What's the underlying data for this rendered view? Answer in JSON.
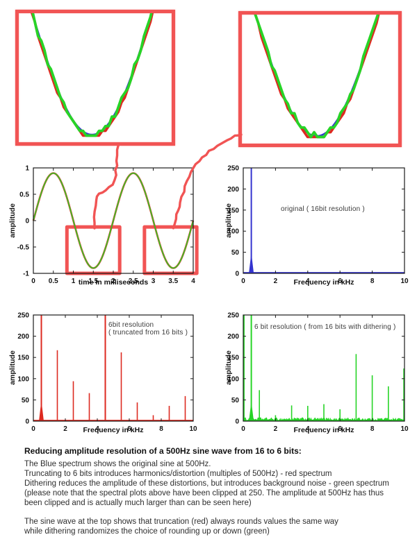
{
  "colors": {
    "zoom_red": "#f15454",
    "signal_green": "#27d427",
    "signal_red": "#dd2a20",
    "signal_blue": "#3434cf",
    "frame": "#1a1a1a",
    "tick_text": "#111111",
    "annotation_text": "#3a3a3a"
  },
  "signal": {
    "frequency_hz": 500,
    "amplitude": 0.9,
    "bits_original": 16,
    "bits_reduced": 6
  },
  "insets": {
    "left": {
      "t_range": [
        0.93,
        2.12
      ],
      "v_range": [
        -0.1,
        -0.95
      ],
      "seed": 11
    },
    "right": {
      "t_range": [
        2.93,
        4.12
      ],
      "v_range": [
        -0.1,
        -0.95
      ],
      "seed": 5
    }
  },
  "chart_data": [
    {
      "type": "line",
      "id": "time",
      "xlabel": "time in milliseconds",
      "ylabel": "amplitude",
      "xlim": [
        0,
        4
      ],
      "ylim": [
        -1,
        1
      ],
      "xticks": [
        0,
        0.5,
        1,
        1.5,
        2,
        2.5,
        3,
        3.5,
        4
      ],
      "xtick_labels": [
        "0",
        "0.5",
        "1",
        "1.5",
        "2",
        "2.5",
        "3",
        "3.5",
        "4"
      ],
      "yticks": [
        -1,
        -0.5,
        0,
        0.5,
        1
      ],
      "ytick_labels": [
        "-1",
        "-0.5",
        "0",
        "0.5",
        "1"
      ],
      "series": [
        {
          "name": "original sine 500Hz (blue)",
          "color_key": "signal_blue"
        },
        {
          "name": "truncated to 6 bits (red)",
          "color_key": "signal_red"
        },
        {
          "name": "dithered to 6 bits (green)",
          "color_key": "signal_green"
        }
      ],
      "sine": {
        "frequency_khz": 0.5,
        "amplitude": 0.9
      },
      "zoom_boxes_t": [
        [
          0.84,
          2.16
        ],
        [
          2.78,
          4.09
        ]
      ],
      "zoom_boxes_v": [
        -0.12,
        -1.0
      ]
    },
    {
      "type": "spectrum",
      "id": "spec-original",
      "annotation": "original ( 16bit resolution )",
      "xlabel": "Frequency in kHz",
      "ylabel": "amplitude",
      "xlim": [
        0,
        10
      ],
      "ylim": [
        0,
        250
      ],
      "xticks": [
        0,
        2,
        4,
        6,
        8,
        10
      ],
      "xtick_labels": [
        "0",
        "2",
        "4",
        "6",
        "8",
        "10"
      ],
      "yticks": [
        0,
        50,
        100,
        150,
        200,
        250
      ],
      "ytick_labels": [
        "0",
        "50",
        "100",
        "150",
        "200",
        "250"
      ],
      "color_key": "signal_blue",
      "clip_at": 250,
      "peaks": [
        {
          "f": 0.5,
          "a": 250,
          "clipped": true
        }
      ],
      "base_bump": {
        "f": 0.5,
        "a": 42,
        "half_width": 0.13
      },
      "noise_floor": 1.5
    },
    {
      "type": "spectrum",
      "id": "spec-truncated",
      "annotation_lines": [
        "6bit resolution",
        "( truncated from 16 bits )"
      ],
      "xlabel": "Frequency in kHz",
      "ylabel": "amplitude",
      "xlim": [
        0,
        10
      ],
      "ylim": [
        0,
        250
      ],
      "xticks": [
        0,
        2,
        4,
        6,
        8,
        10
      ],
      "xtick_labels": [
        "0",
        "2",
        "4",
        "6",
        "8",
        "10"
      ],
      "yticks": [
        0,
        50,
        100,
        150,
        200,
        250
      ],
      "ytick_labels": [
        "0",
        "50",
        "100",
        "150",
        "200",
        "250"
      ],
      "color_key": "signal_red",
      "clip_at": 250,
      "peaks": [
        {
          "f": 0.5,
          "a": 250,
          "clipped": true
        },
        {
          "f": 1.5,
          "a": 167
        },
        {
          "f": 2.5,
          "a": 94
        },
        {
          "f": 3.5,
          "a": 66
        },
        {
          "f": 4.5,
          "a": 250,
          "clipped": true
        },
        {
          "f": 5.5,
          "a": 162
        },
        {
          "f": 6.5,
          "a": 44
        },
        {
          "f": 7.5,
          "a": 14
        },
        {
          "f": 8.5,
          "a": 36
        },
        {
          "f": 9.5,
          "a": 59
        }
      ],
      "base_bump": {
        "f": 0.5,
        "a": 42,
        "half_width": 0.13
      },
      "noise_floor": 1.5
    },
    {
      "type": "spectrum",
      "id": "spec-dithered",
      "annotation": "6 bit resolution ( from 16 bits with dithering )",
      "xlabel": "Frequency in kHz",
      "ylabel": "amplitude",
      "xlim": [
        0,
        10
      ],
      "ylim": [
        0,
        250
      ],
      "xticks": [
        0,
        2,
        4,
        6,
        8,
        10
      ],
      "xtick_labels": [
        "0",
        "2",
        "4",
        "6",
        "8",
        "10"
      ],
      "yticks": [
        0,
        50,
        100,
        150,
        200,
        250
      ],
      "ytick_labels": [
        "0",
        "50",
        "100",
        "150",
        "200",
        "250"
      ],
      "color_key": "signal_green",
      "clip_at": 250,
      "peaks": [
        {
          "f": 0,
          "a": 250,
          "clipped": true
        },
        {
          "f": 0.5,
          "a": 250,
          "clipped": true
        },
        {
          "f": 1,
          "a": 73
        },
        {
          "f": 2,
          "a": 14
        },
        {
          "f": 3,
          "a": 37
        },
        {
          "f": 4,
          "a": 36
        },
        {
          "f": 5,
          "a": 40
        },
        {
          "f": 6,
          "a": 28
        },
        {
          "f": 7,
          "a": 158
        },
        {
          "f": 8,
          "a": 108
        },
        {
          "f": 9,
          "a": 82
        },
        {
          "f": 10,
          "a": 124
        }
      ],
      "base_bump": {
        "f": 0.5,
        "a": 40,
        "half_width": 0.13
      },
      "noise_band": [
        2,
        9
      ]
    }
  ],
  "caption": {
    "title": "Reducing amplitude resolution of a 500Hz sine wave from 16 to 6 bits:",
    "lines": [
      "The Blue spectrum shows the original sine at 500Hz.",
      "Truncating to 6 bits introduces harmonics/distortion (multiples of 500Hz) - red spectrum",
      "Dithering reduces the amplitude of these distortions, but introduces background noise - green spectrum",
      "(please note that the spectral plots above have been clipped at 250. The amplitude at 500Hz has thus",
      "been clipped and is actually much larger than can be seen here)",
      "",
      "The sine wave at the top shows that truncation (red) always rounds values the same way",
      "while dithering randomizes the choice of rounding up or down (green)"
    ]
  }
}
